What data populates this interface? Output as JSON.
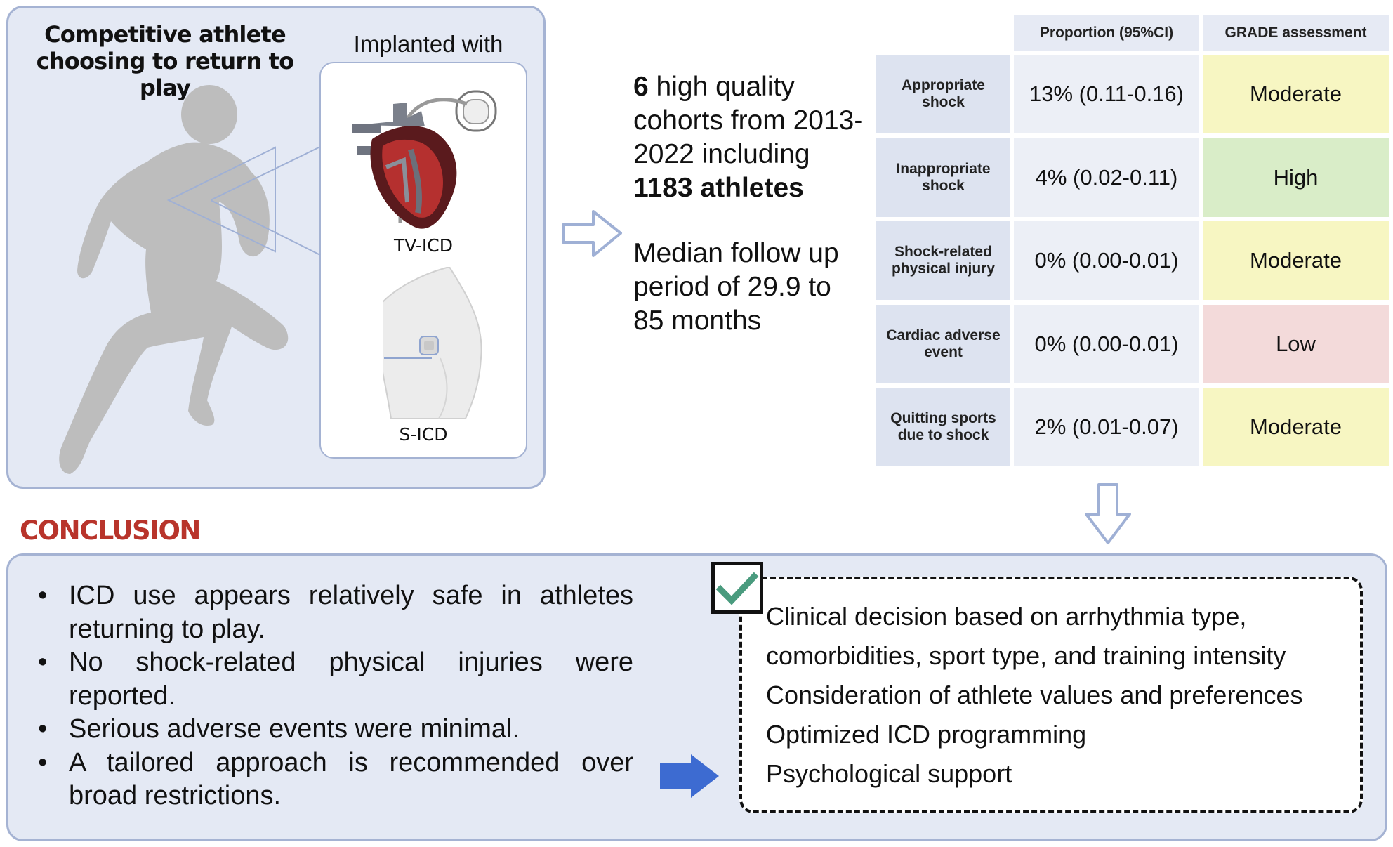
{
  "athlete_panel": {
    "title_line1": "Competitive athlete",
    "title_line2": "choosing to return to play",
    "implanted_label": "Implanted with",
    "devices": [
      "TV-ICD",
      "S-ICD"
    ]
  },
  "stats": {
    "count": "6",
    "text1": " high quality cohorts from 2013-2022 including ",
    "athletes_count": "1183",
    "athletes_word": "athletes",
    "followup": "Median follow up period of 29.9 to 85 months"
  },
  "table": {
    "headers": [
      "Proportion (95%CI)",
      "GRADE assessment"
    ],
    "rows": [
      {
        "label_line1": "Appropriate",
        "label_line2": "shock",
        "proportion": "13% (0.11-0.16)",
        "grade": "Moderate",
        "grade_color": "#f7f6c2"
      },
      {
        "label_line1": "Inappropriate",
        "label_line2": "shock",
        "proportion": "4% (0.02-0.11)",
        "grade": "High",
        "grade_color": "#d9edc8"
      },
      {
        "label_line1": "Shock-related",
        "label_line2": "physical injury",
        "proportion": "0% (0.00-0.01)",
        "grade": "Moderate",
        "grade_color": "#f7f6c2"
      },
      {
        "label_line1": "Cardiac adverse",
        "label_line2": "event",
        "proportion": "0% (0.00-0.01)",
        "grade": "Low",
        "grade_color": "#f3dada"
      },
      {
        "label_line1": "Quitting sports",
        "label_line2": "due to shock",
        "proportion": "2% (0.01-0.07)",
        "grade": "Moderate",
        "grade_color": "#f7f6c2"
      }
    ]
  },
  "conclusion": {
    "heading": "CONCLUSION",
    "bullets": [
      "ICD use appears relatively safe in athletes returning to play.",
      "No shock-related physical injuries were reported.",
      "Serious adverse events were minimal.",
      "A tailored approach is recommended over broad restrictions."
    ],
    "recommendations": [
      "Clinical decision based on arrhythmia type,",
      "comorbidities, sport type, and training intensity",
      "Consideration of athlete values and preferences",
      "Optimized ICD programming",
      "Psychological support"
    ]
  },
  "colors": {
    "panel_fill": "#e4e9f4",
    "panel_border": "#a5b3d3",
    "conclusion_heading": "#b8342b",
    "arrow_blue": "#3d6bd1",
    "check_green": "#4a9b7e",
    "heart_red": "#b5302f"
  },
  "icons": [
    "running-athlete-icon",
    "heart-with-icd-icon",
    "torso-with-sicd-icon",
    "outline-arrow-right-icon",
    "outline-arrow-down-icon",
    "solid-arrow-right-icon",
    "check-icon"
  ]
}
